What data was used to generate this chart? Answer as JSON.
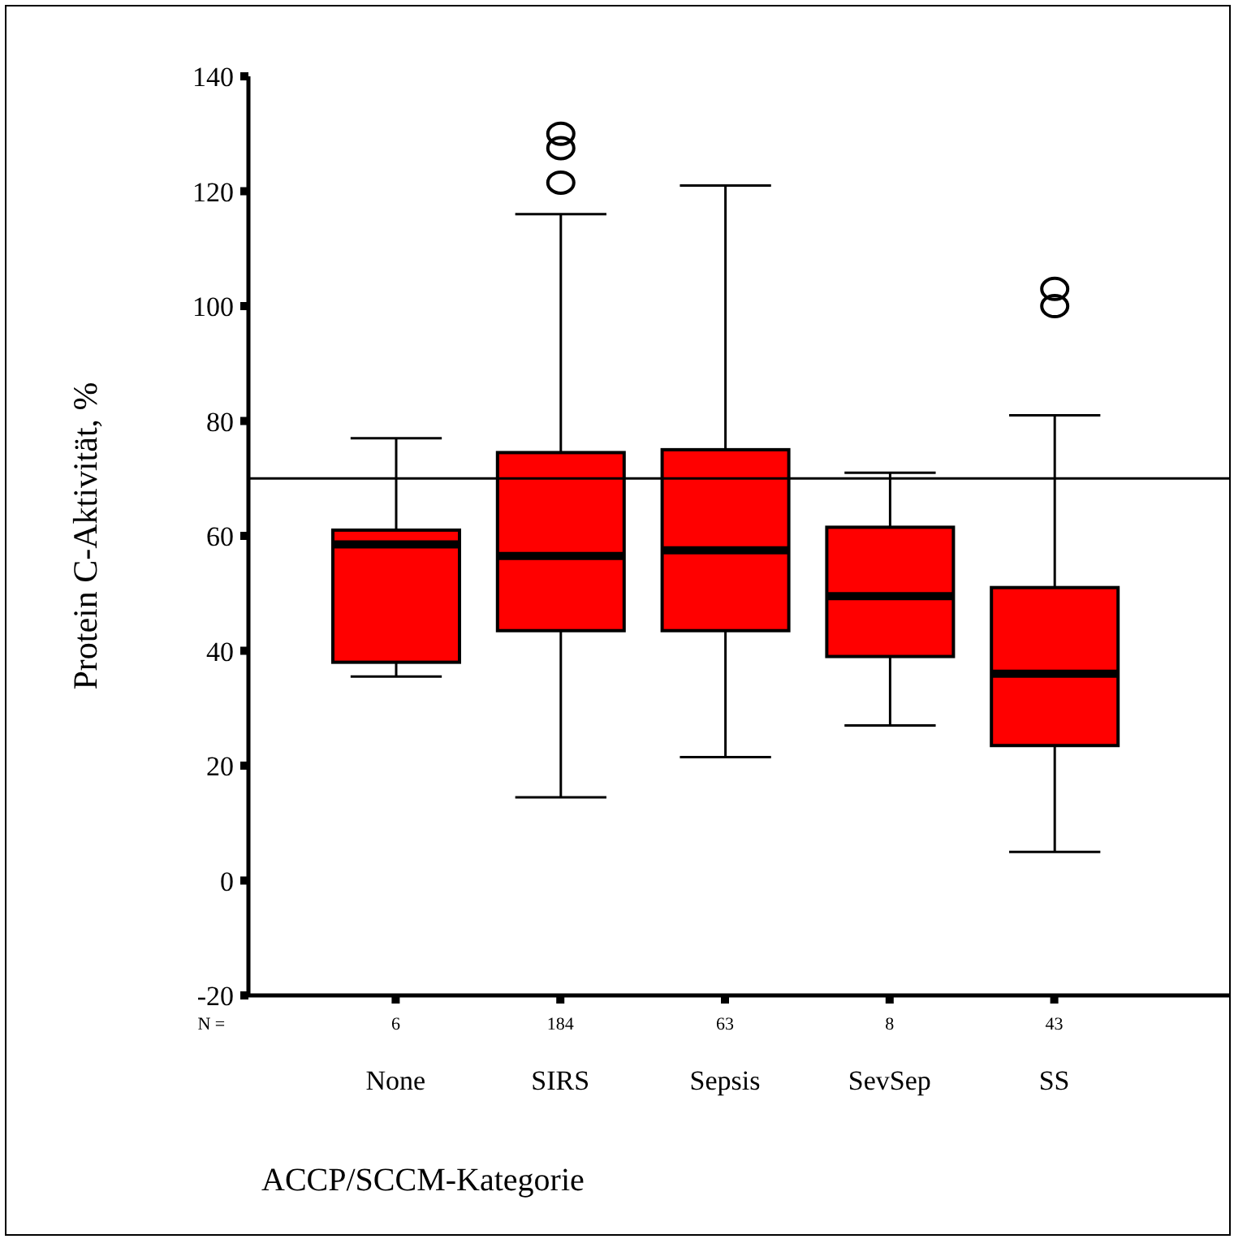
{
  "chart_data": {
    "type": "box",
    "ylabel": "Protein C-Aktivität, %",
    "xlabel": "ACCP/SCCM-Kategorie",
    "categories": [
      "None",
      "SIRS",
      "Sepsis",
      "SevSep",
      "SS"
    ],
    "color": "#ff0000",
    "boxes": [
      {
        "low": 35.5,
        "q1": 38,
        "median": 58.5,
        "q3": 61,
        "high": 77
      },
      {
        "low": 14.5,
        "q1": 43.5,
        "median": 56.5,
        "q3": 74.5,
        "high": 116,
        "outliers": [
          121.5,
          127.5,
          130
        ]
      },
      {
        "low": 21.5,
        "q1": 43.5,
        "median": 57.5,
        "q3": 75,
        "high": 121
      },
      {
        "low": 27,
        "q1": 39,
        "median": 49.5,
        "q3": 61.5,
        "high": 71
      },
      {
        "low": 5,
        "q1": 23.5,
        "median": 36,
        "q3": 51,
        "high": 81,
        "outliers": [
          100,
          103
        ]
      }
    ],
    "ylim": [
      -20,
      140
    ],
    "yticks": [
      -20,
      0,
      20,
      40,
      60,
      80,
      100,
      120,
      140
    ],
    "ref_lines": [
      {
        "axis": "y",
        "value": 70
      }
    ],
    "annotations": [
      "N =",
      "6",
      "184",
      "63",
      "8",
      "43"
    ]
  }
}
